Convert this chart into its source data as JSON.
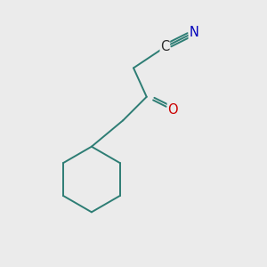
{
  "background_color": "#ebebeb",
  "bond_color": "#2d7d74",
  "bond_width": 1.4,
  "text_C_color": "#2a2a2a",
  "text_N_color": "#0000bb",
  "text_O_color": "#cc0000",
  "font_size": 10.5,
  "figsize": [
    3.0,
    3.0
  ],
  "dpi": 100,
  "xlim": [
    0,
    10
  ],
  "ylim": [
    0,
    10
  ]
}
